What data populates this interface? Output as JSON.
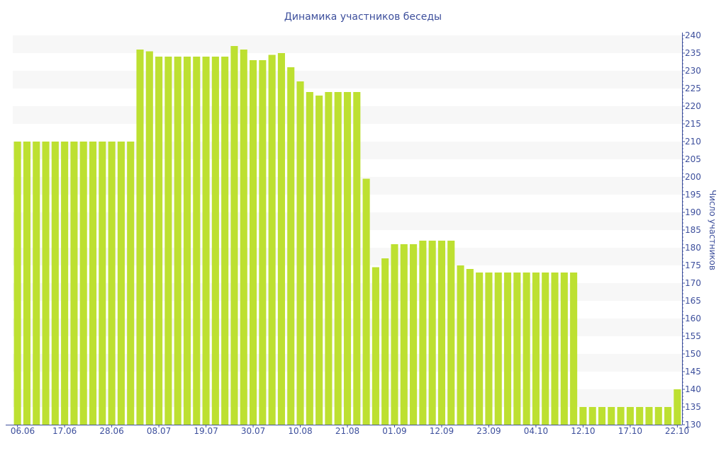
{
  "chart_data": {
    "type": "bar",
    "title": "Динамика участников беседы",
    "xlabel": "",
    "ylabel": "Число участников",
    "ylim": [
      130,
      240
    ],
    "ytick_step": 5,
    "y_axis_position": "right",
    "grid": "alternating horizontal bands",
    "legend": "none",
    "bar_color": "#bde031",
    "axis_color": "#3d4f9c",
    "band_color": "#f7f7f7",
    "x_tick_every": 5,
    "x_tick_labels": [
      "06.06",
      "17.06",
      "28.06",
      "08.07",
      "19.07",
      "30.07",
      "10.08",
      "21.08",
      "01.09",
      "12.09",
      "23.09",
      "04.10",
      "12.10",
      "17.10",
      "22.10"
    ],
    "values": [
      210,
      210,
      210,
      210,
      210,
      210,
      210,
      210,
      210,
      210,
      210,
      210,
      210,
      236,
      235.5,
      234,
      234,
      234,
      234,
      234,
      234,
      234,
      234,
      237,
      236,
      233,
      233,
      234.5,
      235,
      231,
      227,
      224,
      223,
      224,
      224,
      224,
      224,
      199.5,
      174.5,
      177,
      181,
      181,
      181,
      182,
      182,
      182,
      182,
      175,
      174,
      173,
      173,
      173,
      173,
      173,
      173,
      173,
      173,
      173,
      173,
      173,
      135,
      135,
      135,
      135,
      135,
      135,
      135,
      135,
      135,
      135,
      140
    ]
  }
}
